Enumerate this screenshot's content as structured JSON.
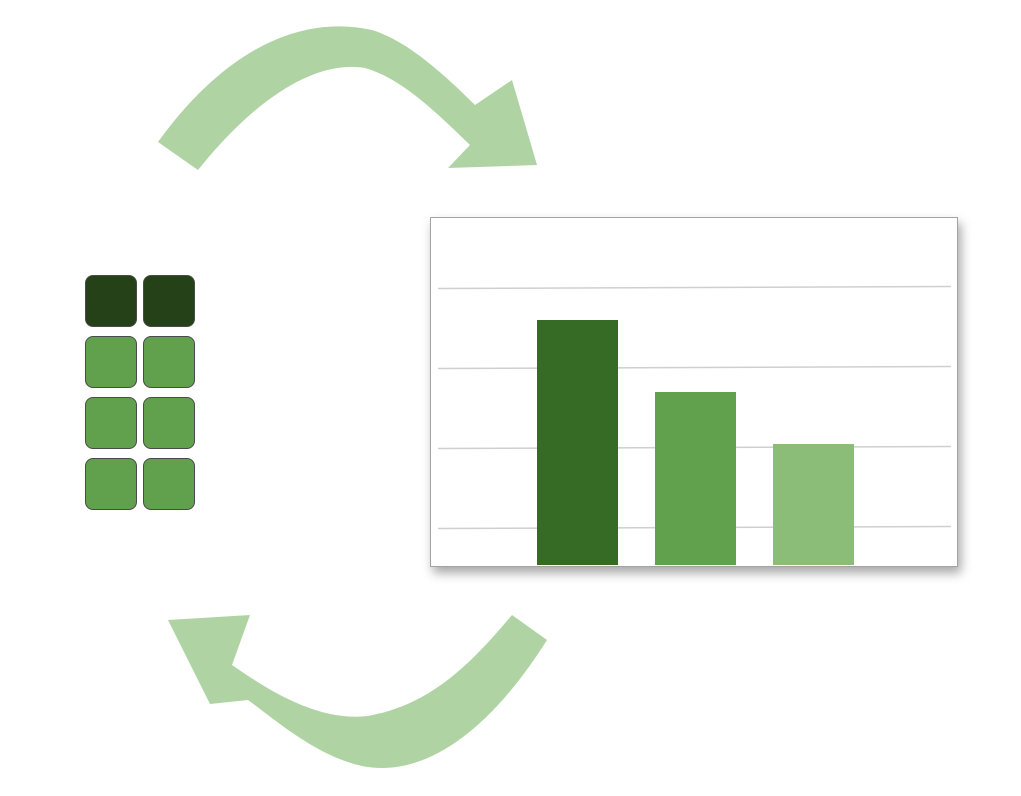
{
  "diagram": {
    "arrow_color": "#b0d3a4",
    "table": {
      "columns": 2,
      "rows": [
        {
          "role": "header",
          "color": "#254117"
        },
        {
          "role": "body",
          "color": "#61a04c"
        },
        {
          "role": "body",
          "color": "#61a04c"
        },
        {
          "role": "body",
          "color": "#61a04c"
        }
      ]
    }
  },
  "chart_data": {
    "type": "bar",
    "title": "",
    "xlabel": "",
    "ylabel": "",
    "categories": [
      "",
      "",
      ""
    ],
    "values": [
      3.1,
      2.2,
      1.55
    ],
    "colors": [
      "#366b25",
      "#61a04c",
      "#8bbd78"
    ],
    "ylim": [
      0,
      4
    ],
    "grid": true,
    "gridline_values": [
      0.5,
      1.5,
      2.5,
      3.5
    ],
    "tick_labels_visible": false,
    "legend": "none"
  }
}
